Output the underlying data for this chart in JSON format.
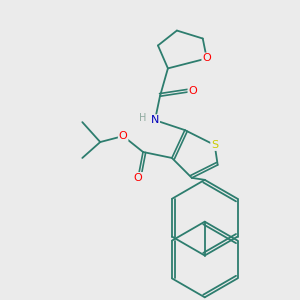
{
  "background_color": "#ebebeb",
  "bond_color": "#2d7d6e",
  "atom_colors": {
    "O": "#ff0000",
    "N": "#0000bb",
    "S": "#cccc00",
    "H": "#888888",
    "C": "#2d7d6e"
  },
  "figsize": [
    3.0,
    3.0
  ],
  "dpi": 100
}
